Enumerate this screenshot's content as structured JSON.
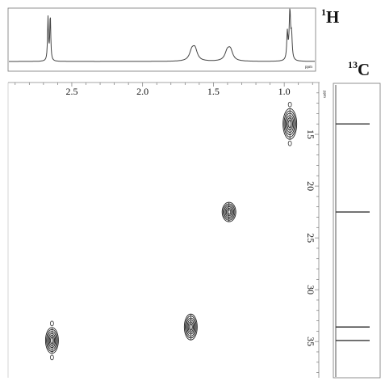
{
  "chart_data": {
    "type": "heatmap",
    "subtype": "2D NMR HSQC correlation spectrum",
    "title": "",
    "h_axis_label": "1H",
    "h_axis_label_sup": "1",
    "h_axis_label_base": "H",
    "c_axis_label": "13C",
    "c_axis_label_sup": "13",
    "c_axis_label_base": "C",
    "h_ticks": [
      "2.5",
      "2.0",
      "1.5",
      "1.0"
    ],
    "c_ticks": [
      "15",
      "20",
      "25",
      "30",
      "35"
    ],
    "h_range_ppm": [
      2.95,
      0.75
    ],
    "c_range_ppm": [
      10.0,
      38.5
    ],
    "unit_label": "ppm",
    "h_projection_peaks": [
      {
        "ppm": 2.66,
        "height": 0.88
      },
      {
        "ppm": 1.64,
        "height": 0.28
      },
      {
        "ppm": 1.39,
        "height": 0.26
      },
      {
        "ppm": 0.96,
        "height": 0.95
      }
    ],
    "c_projection_lines": [
      14.0,
      22.5,
      33.6,
      34.9
    ],
    "cross_peaks": [
      {
        "h": 0.96,
        "c": 14.0
      },
      {
        "h": 1.39,
        "c": 22.5
      },
      {
        "h": 1.66,
        "c": 33.6
      },
      {
        "h": 2.64,
        "c": 34.9
      }
    ]
  }
}
